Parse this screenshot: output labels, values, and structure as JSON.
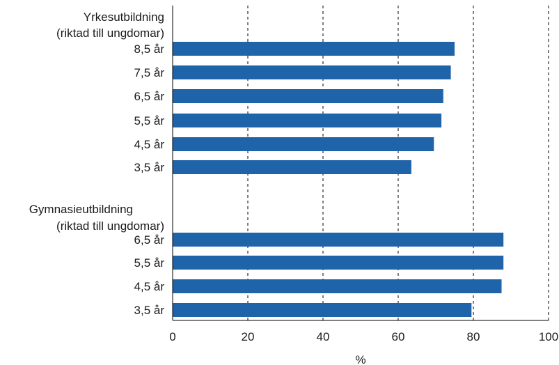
{
  "chart_data": {
    "type": "bar",
    "orientation": "horizontal",
    "xlabel": "%",
    "xlim": [
      0,
      100
    ],
    "xticks": [
      "0",
      "20",
      "40",
      "60",
      "80",
      "100"
    ],
    "grid": "vertical dashed",
    "color": "#1f63a8",
    "groups": [
      {
        "label_line1": "Yrkesutbildning",
        "label_line2": "(riktad till ungdomar)",
        "categories": [
          "8,5 år",
          "7,5 år",
          "6,5 år",
          "5,5 år",
          "4,5 år",
          "3,5 år"
        ],
        "values": [
          75,
          74,
          72,
          71.5,
          69.5,
          63.5
        ]
      },
      {
        "label_line1": "Gymnasieutbildning",
        "label_line2": "(riktad till ungdomar)",
        "categories": [
          "6,5 år",
          "5,5 år",
          "4,5 år",
          "3,5 år"
        ],
        "values": [
          88,
          88,
          87.5,
          79.5
        ]
      }
    ]
  }
}
